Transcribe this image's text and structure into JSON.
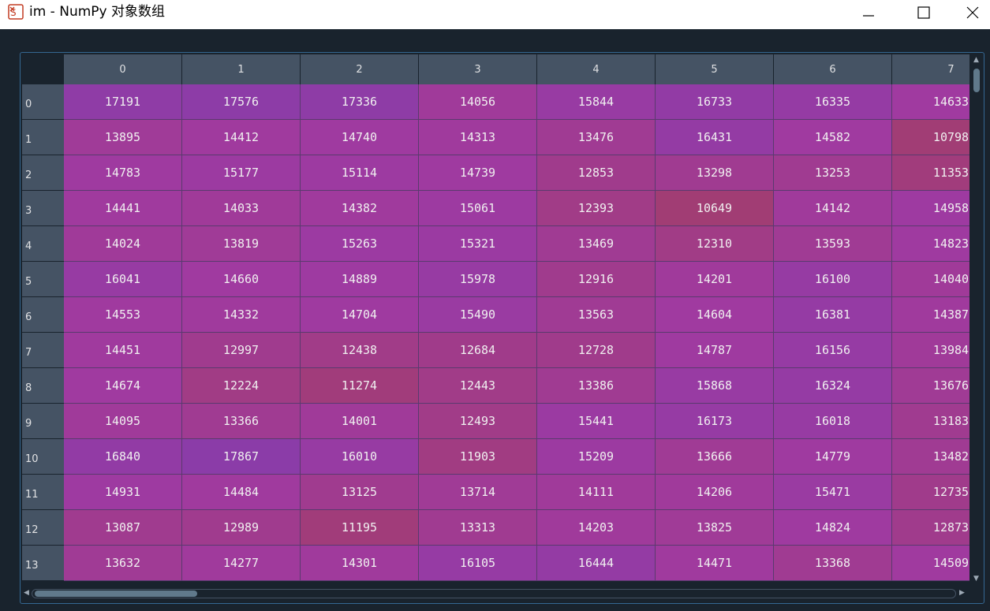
{
  "window": {
    "title": "im - NumPy 对象数组"
  },
  "icons": {
    "app": "numpy-array-icon",
    "minimize": "minimize-icon",
    "maximize": "maximize-icon",
    "close": "close-icon"
  },
  "colors": {
    "background": "#19232d",
    "header": "#455364",
    "cell_low": "#a13d72",
    "cell_high": "#8a3ca8"
  },
  "table": {
    "column_headers": [
      "0",
      "1",
      "2",
      "3",
      "4",
      "5",
      "6",
      "7"
    ],
    "row_headers": [
      "0",
      "1",
      "2",
      "3",
      "4",
      "5",
      "6",
      "7",
      "8",
      "9",
      "10",
      "11",
      "12",
      "13"
    ],
    "rows": [
      [
        "17191",
        "17576",
        "17336",
        "14056",
        "15844",
        "16733",
        "16335",
        "14633"
      ],
      [
        "13895",
        "14412",
        "14740",
        "14313",
        "13476",
        "16431",
        "14582",
        "10798"
      ],
      [
        "14783",
        "15177",
        "15114",
        "14739",
        "12853",
        "13298",
        "13253",
        "11353"
      ],
      [
        "14441",
        "14033",
        "14382",
        "15061",
        "12393",
        "10649",
        "14142",
        "14958"
      ],
      [
        "14024",
        "13819",
        "15263",
        "15321",
        "13469",
        "12310",
        "13593",
        "14823"
      ],
      [
        "16041",
        "14660",
        "14889",
        "15978",
        "12916",
        "14201",
        "16100",
        "14040"
      ],
      [
        "14553",
        "14332",
        "14704",
        "15490",
        "13563",
        "14604",
        "16381",
        "14387"
      ],
      [
        "14451",
        "12997",
        "12438",
        "12684",
        "12728",
        "14787",
        "16156",
        "13984"
      ],
      [
        "14674",
        "12224",
        "11274",
        "12443",
        "13386",
        "15868",
        "16324",
        "13676"
      ],
      [
        "14095",
        "13366",
        "14001",
        "12493",
        "15441",
        "16173",
        "16018",
        "13183"
      ],
      [
        "16840",
        "17867",
        "16010",
        "11903",
        "15209",
        "13666",
        "14779",
        "13482"
      ],
      [
        "14931",
        "14484",
        "13125",
        "13714",
        "14111",
        "14206",
        "15471",
        "12735"
      ],
      [
        "13087",
        "12989",
        "11195",
        "13313",
        "14203",
        "13825",
        "14824",
        "12873"
      ],
      [
        "13632",
        "14277",
        "14301",
        "16105",
        "16444",
        "14471",
        "13368",
        "14509"
      ]
    ]
  }
}
